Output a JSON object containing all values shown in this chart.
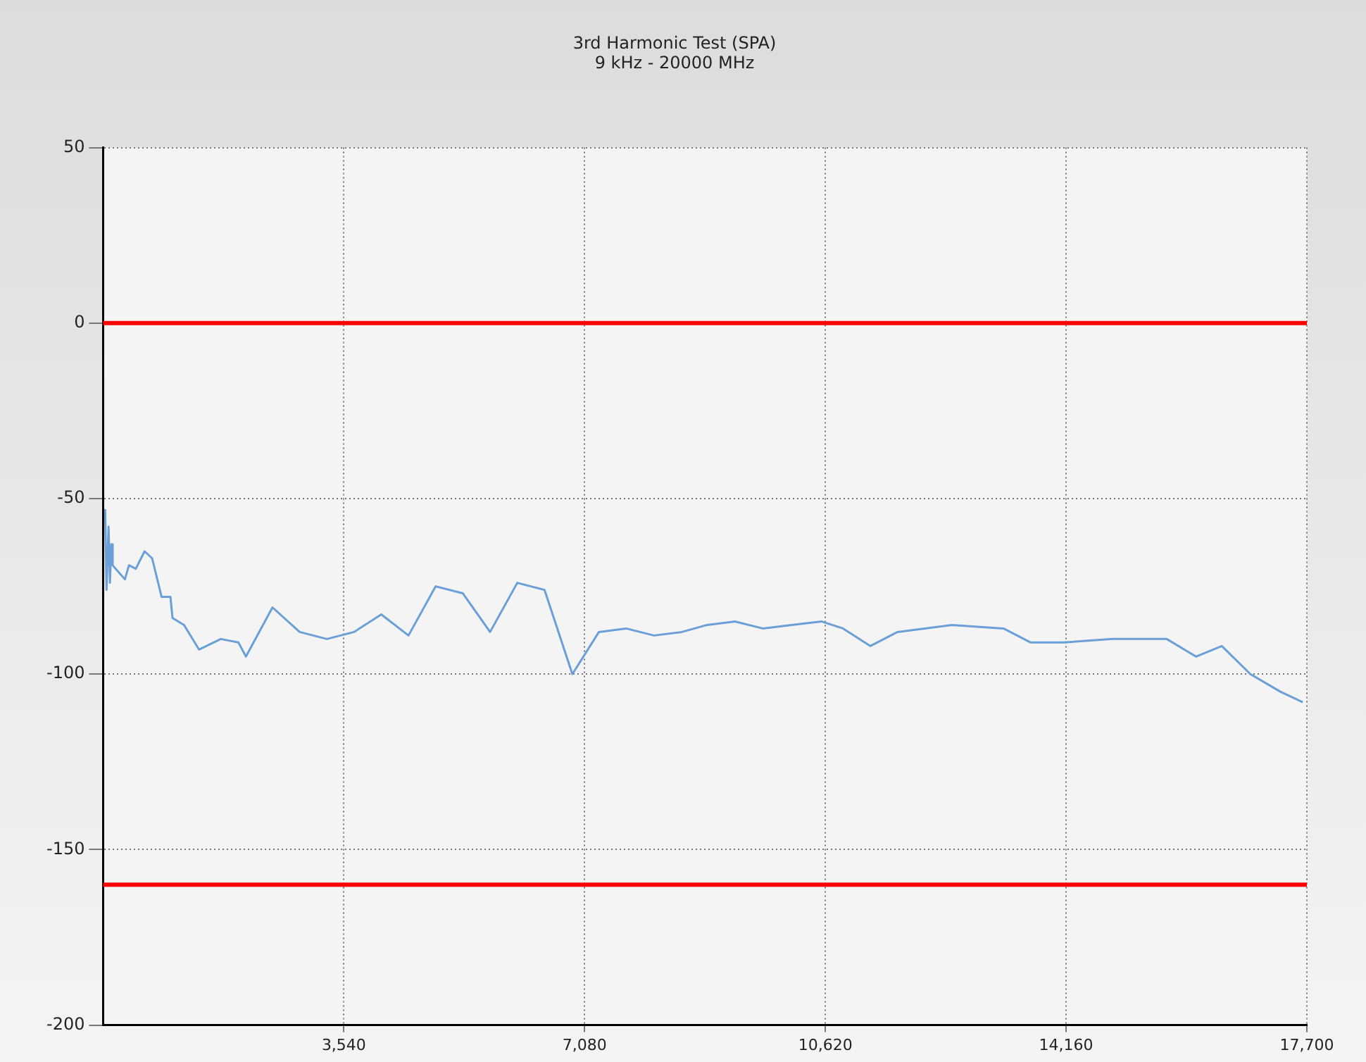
{
  "chart_data": {
    "type": "line",
    "title": "3rd Harmonic Test (SPA)",
    "subtitle": "9 kHz - 20000 MHz",
    "xlim": [
      0,
      17700
    ],
    "xticks": [
      {
        "value": 3540,
        "label": "3,540"
      },
      {
        "value": 7080,
        "label": "7,080"
      },
      {
        "value": 10620,
        "label": "10,620"
      },
      {
        "value": 14160,
        "label": "14,160"
      },
      {
        "value": 17700,
        "label": "17,700"
      }
    ],
    "ylim": [
      -200,
      50
    ],
    "yticks": [
      -200,
      -150,
      -100,
      -50,
      0,
      50
    ],
    "grid": true,
    "legend": false,
    "marker": "none",
    "line_style": "solid",
    "ref_lines": [
      {
        "axis": "y",
        "value": 0,
        "color": "#ff0000"
      },
      {
        "axis": "y",
        "value": -160,
        "color": "#ff0000"
      }
    ],
    "series": [
      {
        "color": "#6a9fd8",
        "x": [
          30,
          50,
          80,
          100,
          120,
          140,
          320,
          380,
          480,
          610,
          720,
          860,
          990,
          1020,
          1190,
          1410,
          1730,
          1990,
          2100,
          2490,
          2890,
          3290,
          3690,
          4090,
          4490,
          4890,
          5290,
          5690,
          6090,
          6490,
          6900,
          7290,
          7690,
          8100,
          8510,
          8880,
          9290,
          9700,
          10120,
          10560,
          10880,
          11280,
          11680,
          12080,
          12480,
          13240,
          13640,
          14110,
          14840,
          15640,
          16070,
          16450,
          16870,
          17310,
          17640
        ],
        "values": [
          -53,
          -76,
          -58,
          -74,
          -63,
          -69,
          -73,
          -69,
          -70,
          -65,
          -67,
          -78,
          -78,
          -84,
          -86,
          -93,
          -90,
          -91,
          -95,
          -81,
          -88,
          -90,
          -88,
          -83,
          -89,
          -75,
          -77,
          -88,
          -74,
          -76,
          -100,
          -88,
          -87,
          -89,
          -88,
          -86,
          -85,
          -87,
          -86,
          -85,
          -87,
          -92,
          -88,
          -87,
          -86,
          -87,
          -91,
          -91,
          -90,
          -90,
          -95,
          -92,
          -100,
          -105,
          -108
        ]
      }
    ]
  }
}
